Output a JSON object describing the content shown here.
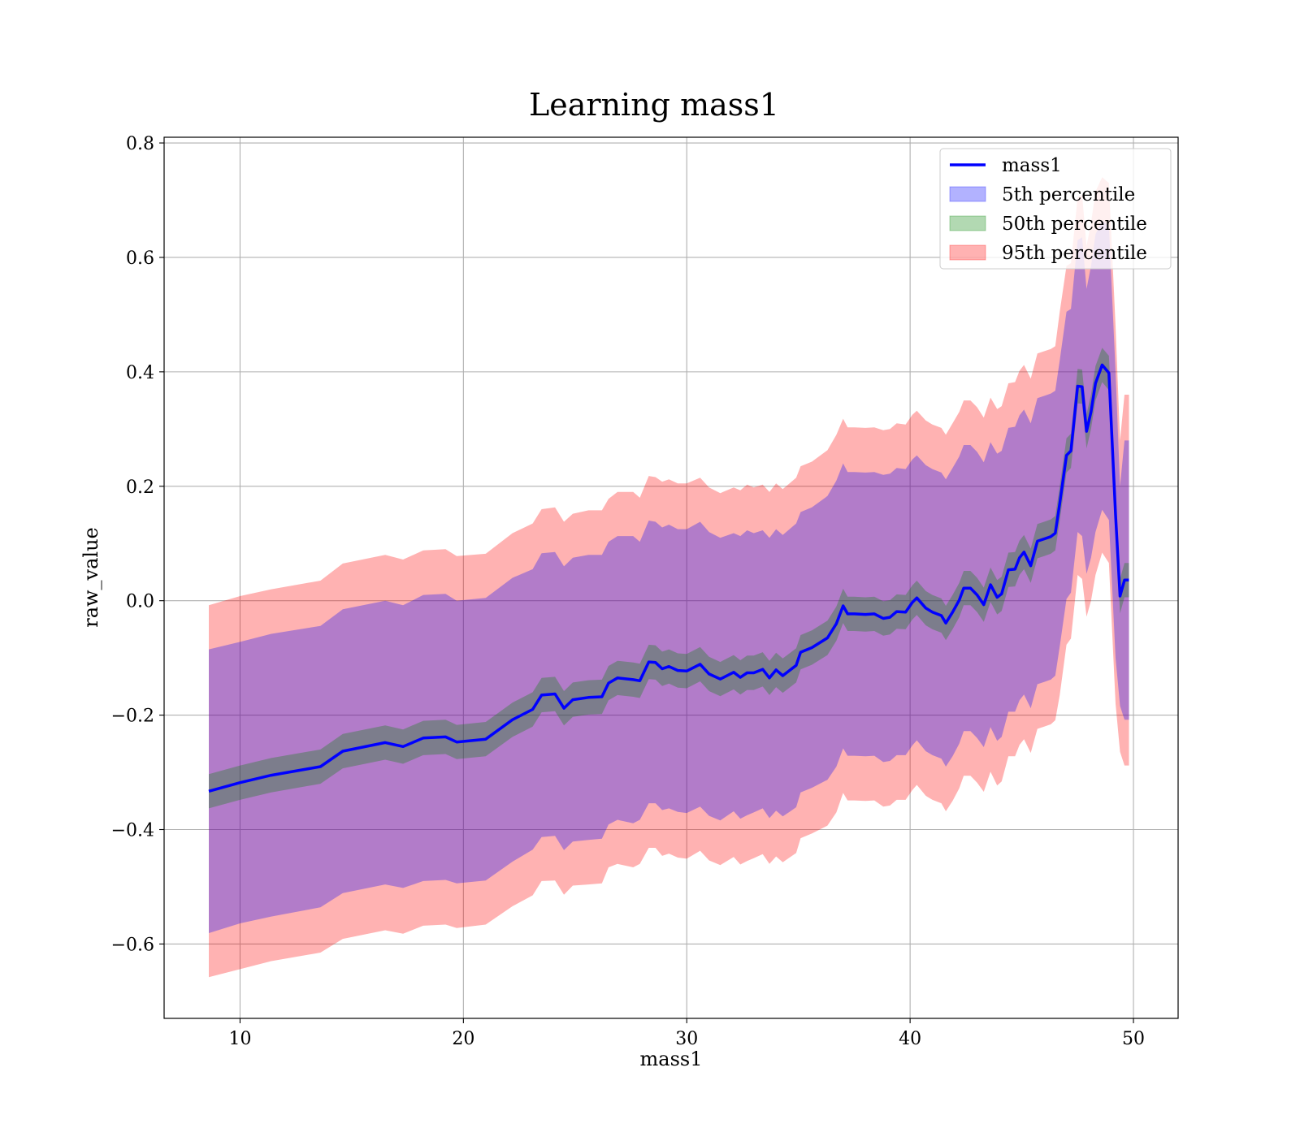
{
  "chart_data": {
    "type": "line",
    "title": "Learning mass1",
    "xlabel": "mass1",
    "ylabel": "raw_value",
    "xlim": [
      6.6,
      52
    ],
    "ylim": [
      -0.73,
      0.81
    ],
    "xticks": [
      10,
      20,
      30,
      40,
      50
    ],
    "yticks": [
      -0.6,
      -0.4,
      -0.2,
      0.0,
      0.2,
      0.4,
      0.6,
      0.8
    ],
    "xtick_labels": [
      "10",
      "20",
      "30",
      "40",
      "50"
    ],
    "ytick_labels": [
      "−0.6",
      "−0.4",
      "−0.2",
      "0.0",
      "0.2",
      "0.4",
      "0.6",
      "0.8"
    ],
    "grid": true,
    "legend_position": "top-right",
    "colors": {
      "line": "#0000ff",
      "band_5th": "#0000ff",
      "band_50th": "#008000",
      "band_95th": "#ff0000"
    },
    "legend": [
      {
        "label": "mass1",
        "kind": "line",
        "color": "#0000ff"
      },
      {
        "label": "5th percentile",
        "kind": "patch",
        "color": "#0000ff"
      },
      {
        "label": "50th percentile",
        "kind": "patch",
        "color": "#008000"
      },
      {
        "label": "95th percentile",
        "kind": "patch",
        "color": "#ff0000"
      }
    ],
    "x": [
      8.6,
      10.0,
      11.4,
      13.6,
      14.6,
      16.5,
      17.3,
      18.2,
      19.2,
      19.7,
      21.0,
      22.2,
      23.1,
      23.5,
      24.1,
      24.5,
      24.9,
      25.6,
      26.2,
      26.5,
      26.9,
      27.6,
      27.9,
      28.3,
      28.6,
      28.9,
      29.2,
      29.6,
      30.0,
      30.6,
      31.0,
      31.5,
      32.1,
      32.4,
      32.7,
      33.0,
      33.4,
      33.7,
      34.0,
      34.3,
      34.6,
      34.9,
      35.1,
      35.6,
      36.3,
      36.7,
      37.0,
      37.2,
      37.5,
      38.0,
      38.4,
      38.8,
      39.1,
      39.4,
      39.8,
      40.1,
      40.3,
      40.7,
      41.0,
      41.4,
      41.6,
      41.9,
      42.2,
      42.4,
      42.7,
      43.0,
      43.3,
      43.6,
      43.9,
      44.1,
      44.4,
      44.7,
      44.9,
      45.1,
      45.4,
      45.7,
      46.0,
      46.3,
      46.5,
      46.7,
      47.0,
      47.2,
      47.5,
      47.7,
      47.9,
      48.1,
      48.3,
      48.6,
      48.9,
      49.2,
      49.4,
      49.6,
      49.8
    ],
    "series": [
      {
        "name": "mass1",
        "values": [
          -0.333,
          -0.318,
          -0.305,
          -0.29,
          -0.263,
          -0.248,
          -0.255,
          -0.24,
          -0.238,
          -0.247,
          -0.242,
          -0.208,
          -0.19,
          -0.165,
          -0.163,
          -0.188,
          -0.173,
          -0.169,
          -0.168,
          -0.144,
          -0.135,
          -0.138,
          -0.14,
          -0.107,
          -0.108,
          -0.119,
          -0.115,
          -0.122,
          -0.123,
          -0.111,
          -0.128,
          -0.137,
          -0.125,
          -0.134,
          -0.126,
          -0.126,
          -0.12,
          -0.135,
          -0.121,
          -0.131,
          -0.122,
          -0.113,
          -0.09,
          -0.082,
          -0.065,
          -0.04,
          -0.009,
          -0.023,
          -0.023,
          -0.024,
          -0.023,
          -0.031,
          -0.029,
          -0.019,
          -0.02,
          -0.003,
          0.005,
          -0.013,
          -0.02,
          -0.026,
          -0.039,
          -0.02,
          0.001,
          0.022,
          0.022,
          0.01,
          -0.007,
          0.028,
          0.006,
          0.012,
          0.054,
          0.055,
          0.075,
          0.085,
          0.061,
          0.104,
          0.108,
          0.112,
          0.118,
          0.17,
          0.254,
          0.262,
          0.375,
          0.374,
          0.296,
          0.33,
          0.38,
          0.412,
          0.398,
          0.15,
          0.008,
          0.036,
          0.036
        ]
      }
    ],
    "bands": [
      {
        "name": "95th percentile",
        "upper": [
          -0.008,
          0.008,
          0.02,
          0.035,
          0.065,
          0.08,
          0.072,
          0.088,
          0.09,
          0.078,
          0.082,
          0.118,
          0.135,
          0.16,
          0.163,
          0.138,
          0.152,
          0.158,
          0.158,
          0.178,
          0.19,
          0.19,
          0.18,
          0.218,
          0.216,
          0.208,
          0.212,
          0.205,
          0.205,
          0.215,
          0.198,
          0.188,
          0.198,
          0.193,
          0.203,
          0.198,
          0.203,
          0.19,
          0.205,
          0.195,
          0.205,
          0.215,
          0.235,
          0.243,
          0.263,
          0.29,
          0.318,
          0.303,
          0.303,
          0.302,
          0.303,
          0.298,
          0.3,
          0.31,
          0.308,
          0.325,
          0.332,
          0.315,
          0.308,
          0.302,
          0.29,
          0.31,
          0.33,
          0.35,
          0.35,
          0.338,
          0.32,
          0.355,
          0.335,
          0.34,
          0.38,
          0.382,
          0.402,
          0.412,
          0.388,
          0.432,
          0.436,
          0.44,
          0.445,
          0.505,
          0.585,
          0.59,
          0.705,
          0.71,
          0.62,
          0.66,
          0.715,
          0.74,
          0.73,
          0.48,
          0.28,
          0.36,
          0.36
        ]
      },
      {
        "name": "5th percentile",
        "upper": [
          -0.085,
          -0.072,
          -0.058,
          -0.044,
          -0.015,
          0.0,
          -0.008,
          0.01,
          0.012,
          0.0,
          0.005,
          0.04,
          0.055,
          0.083,
          0.085,
          0.06,
          0.075,
          0.08,
          0.08,
          0.103,
          0.113,
          0.113,
          0.103,
          0.14,
          0.138,
          0.128,
          0.133,
          0.125,
          0.125,
          0.138,
          0.12,
          0.11,
          0.118,
          0.113,
          0.123,
          0.118,
          0.123,
          0.11,
          0.125,
          0.115,
          0.125,
          0.135,
          0.155,
          0.163,
          0.183,
          0.21,
          0.24,
          0.225,
          0.225,
          0.224,
          0.225,
          0.22,
          0.222,
          0.232,
          0.23,
          0.247,
          0.254,
          0.237,
          0.23,
          0.224,
          0.212,
          0.232,
          0.252,
          0.272,
          0.272,
          0.26,
          0.242,
          0.277,
          0.257,
          0.262,
          0.302,
          0.304,
          0.324,
          0.334,
          0.31,
          0.354,
          0.358,
          0.362,
          0.367,
          0.42,
          0.505,
          0.51,
          0.63,
          0.635,
          0.545,
          0.585,
          0.64,
          0.665,
          0.655,
          0.4,
          0.2,
          0.28,
          0.28
        ]
      },
      {
        "name": "50th percentile",
        "upper": [
          -0.303,
          -0.288,
          -0.275,
          -0.26,
          -0.233,
          -0.218,
          -0.225,
          -0.21,
          -0.208,
          -0.217,
          -0.212,
          -0.178,
          -0.16,
          -0.135,
          -0.133,
          -0.158,
          -0.143,
          -0.139,
          -0.138,
          -0.114,
          -0.105,
          -0.108,
          -0.11,
          -0.077,
          -0.078,
          -0.089,
          -0.085,
          -0.092,
          -0.093,
          -0.081,
          -0.098,
          -0.107,
          -0.095,
          -0.104,
          -0.096,
          -0.096,
          -0.09,
          -0.105,
          -0.091,
          -0.101,
          -0.092,
          -0.083,
          -0.06,
          -0.052,
          -0.035,
          -0.01,
          0.021,
          0.007,
          0.007,
          0.006,
          0.007,
          -0.001,
          0.001,
          0.011,
          0.01,
          0.027,
          0.035,
          0.017,
          0.01,
          0.004,
          -0.009,
          0.01,
          0.031,
          0.052,
          0.052,
          0.04,
          0.023,
          0.058,
          0.036,
          0.042,
          0.084,
          0.085,
          0.105,
          0.115,
          0.091,
          0.134,
          0.138,
          0.142,
          0.148,
          0.2,
          0.284,
          0.292,
          0.405,
          0.404,
          0.326,
          0.36,
          0.41,
          0.442,
          0.428,
          0.18,
          0.038,
          0.066,
          0.066
        ]
      }
    ]
  }
}
